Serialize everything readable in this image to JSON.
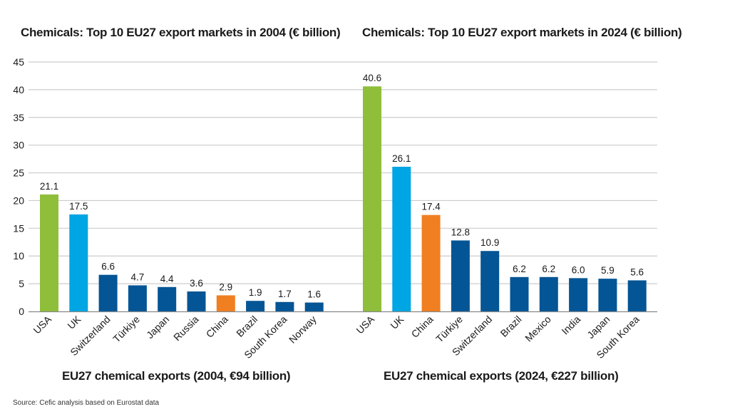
{
  "source_note": "Source: Cefic analysis based on Eurostat data",
  "colors": {
    "usa": "#8fbe3b",
    "uk": "#00a5e3",
    "china": "#f07f22",
    "other": "#045595",
    "grid": "#cccccc",
    "axis": "#888888"
  },
  "chart_data": [
    {
      "type": "bar",
      "title": "Chemicals: Top 10 EU27 export markets in 2004 (€ billion)",
      "xlabel": "EU27 chemical exports (2004, €94 billion)",
      "ylabel": "",
      "ylim": [
        0,
        45
      ],
      "yticks": [
        0,
        5,
        10,
        15,
        20,
        25,
        30,
        35,
        40,
        45
      ],
      "grid": true,
      "categories": [
        "USA",
        "UK",
        "Switzerland",
        "Türkiye",
        "Japan",
        "Russia",
        "China",
        "Brazil",
        "South Korea",
        "Norway"
      ],
      "values": [
        21.1,
        17.5,
        6.6,
        4.7,
        4.4,
        3.6,
        2.9,
        1.9,
        1.7,
        1.6
      ],
      "value_labels": [
        "21.1",
        "17.5",
        "6.6",
        "4.7",
        "4.4",
        "3.6",
        "2.9",
        "1.9",
        "1.7",
        "1.6"
      ],
      "bar_color_keys": [
        "usa",
        "uk",
        "other",
        "other",
        "other",
        "other",
        "china",
        "other",
        "other",
        "other"
      ]
    },
    {
      "type": "bar",
      "title": "Chemicals: Top 10 EU27 export markets in 2024 (€ billion)",
      "xlabel": "EU27 chemical exports (2024, €227 billion)",
      "ylabel": "",
      "ylim": [
        0,
        45
      ],
      "grid": true,
      "categories": [
        "USA",
        "UK",
        "China",
        "Türkiye",
        "Switzerland",
        "Brazil",
        "Mexico",
        "India",
        "Japan",
        "South Korea"
      ],
      "values": [
        40.6,
        26.1,
        17.4,
        12.8,
        10.9,
        6.2,
        6.2,
        6.0,
        5.9,
        5.6
      ],
      "value_labels": [
        "40.6",
        "26.1",
        "17.4",
        "12.8",
        "10.9",
        "6.2",
        "6.2",
        "6.0",
        "5.9",
        "5.6"
      ],
      "bar_color_keys": [
        "usa",
        "uk",
        "china",
        "other",
        "other",
        "other",
        "other",
        "other",
        "other",
        "other"
      ]
    }
  ]
}
